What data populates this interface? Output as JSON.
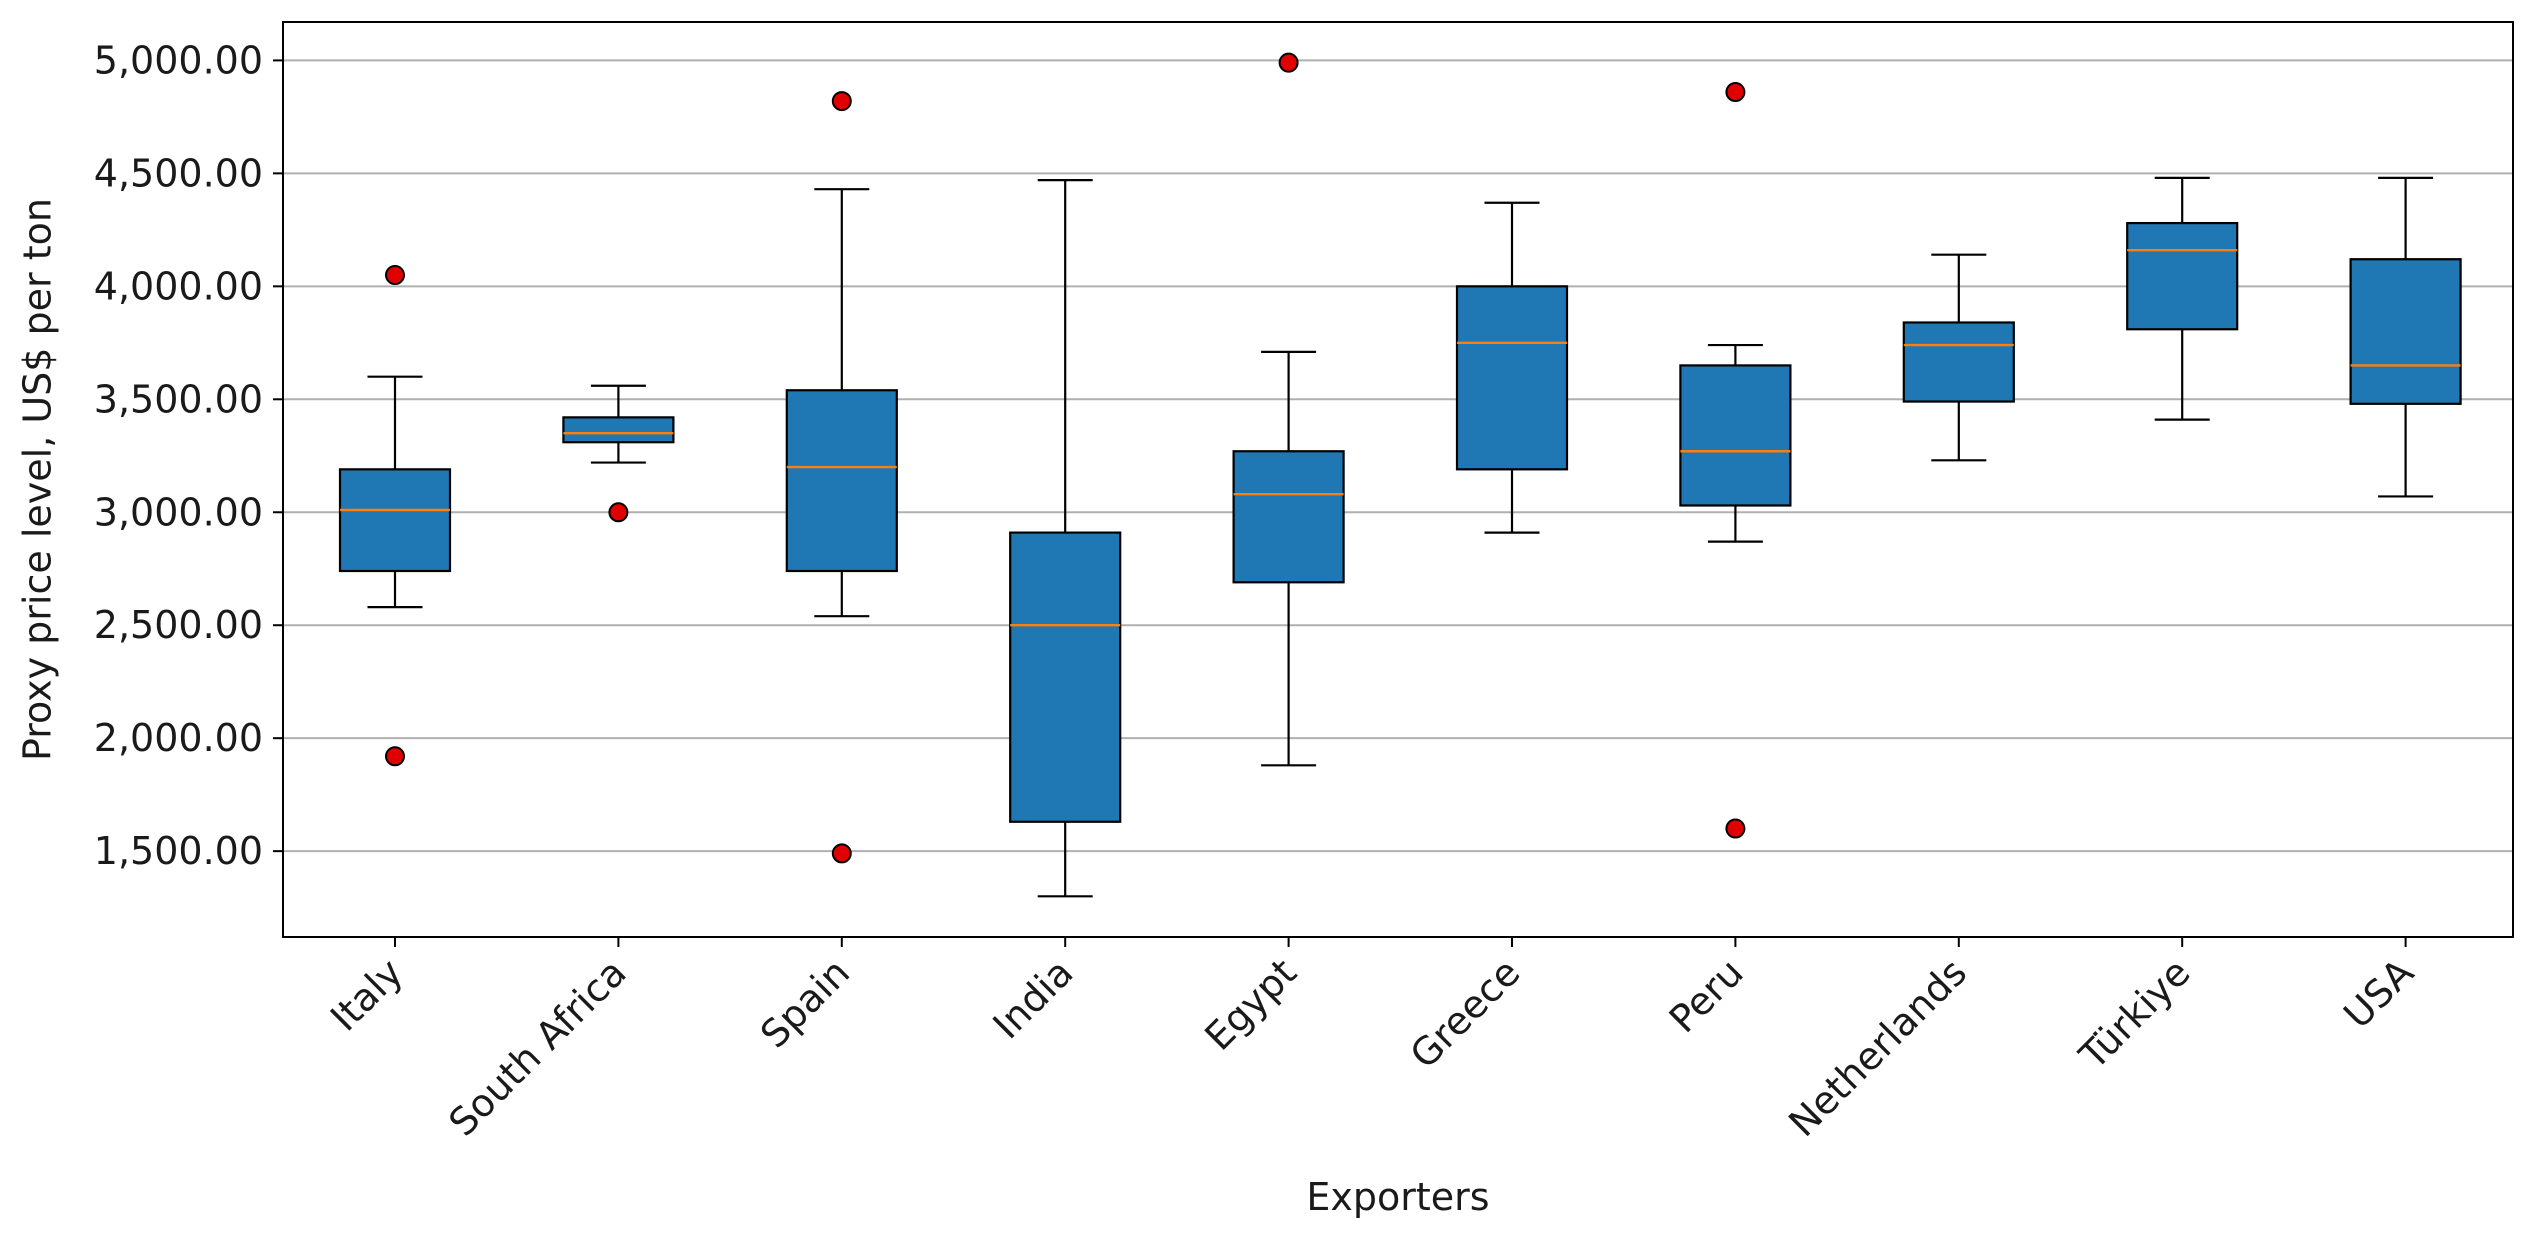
{
  "chart_data": {
    "type": "box",
    "title": "",
    "xlabel": "Exporters",
    "ylabel": "Proxy price level, US$ per ton",
    "ylim": [
      1120,
      5170
    ],
    "yticks": [
      1500,
      2000,
      2500,
      3000,
      3500,
      4000,
      4500,
      5000
    ],
    "ytick_labels": [
      "1,500.00",
      "2,000.00",
      "2,500.00",
      "3,000.00",
      "3,500.00",
      "4,000.00",
      "4,500.00",
      "5,000.00"
    ],
    "grid": "horizontal",
    "categories": [
      "Italy",
      "South Africa",
      "Spain",
      "India",
      "Egypt",
      "Greece",
      "Peru",
      "Netherlands",
      "Türkiye",
      "USA"
    ],
    "boxes": [
      {
        "whisker_low": 2580,
        "q1": 2740,
        "median": 3010,
        "q3": 3190,
        "whisker_high": 3600,
        "outliers": [
          4050,
          1920
        ]
      },
      {
        "whisker_low": 3220,
        "q1": 3310,
        "median": 3350,
        "q3": 3420,
        "whisker_high": 3560,
        "outliers": [
          3000
        ]
      },
      {
        "whisker_low": 2540,
        "q1": 2740,
        "median": 3200,
        "q3": 3540,
        "whisker_high": 4430,
        "outliers": [
          4820,
          1490
        ]
      },
      {
        "whisker_low": 1300,
        "q1": 1630,
        "median": 2500,
        "q3": 2910,
        "whisker_high": 4470,
        "outliers": []
      },
      {
        "whisker_low": 1880,
        "q1": 2690,
        "median": 3080,
        "q3": 3270,
        "whisker_high": 3710,
        "outliers": [
          4990
        ]
      },
      {
        "whisker_low": 2910,
        "q1": 3190,
        "median": 3750,
        "q3": 4000,
        "whisker_high": 4370,
        "outliers": []
      },
      {
        "whisker_low": 2870,
        "q1": 3030,
        "median": 3270,
        "q3": 3650,
        "whisker_high": 3740,
        "outliers": [
          4860,
          1600
        ]
      },
      {
        "whisker_low": 3230,
        "q1": 3490,
        "median": 3740,
        "q3": 3840,
        "whisker_high": 4140,
        "outliers": []
      },
      {
        "whisker_low": 3410,
        "q1": 3810,
        "median": 4160,
        "q3": 4280,
        "whisker_high": 4480,
        "outliers": []
      },
      {
        "whisker_low": 3070,
        "q1": 3480,
        "median": 3650,
        "q3": 4120,
        "whisker_high": 4480,
        "outliers": []
      }
    ],
    "colors": {
      "box_fill": "#1f77b4",
      "median": "#ff7f0e",
      "outlier_fill": "#e00000",
      "edge": "#000000",
      "grid": "#b0b0b0"
    }
  }
}
